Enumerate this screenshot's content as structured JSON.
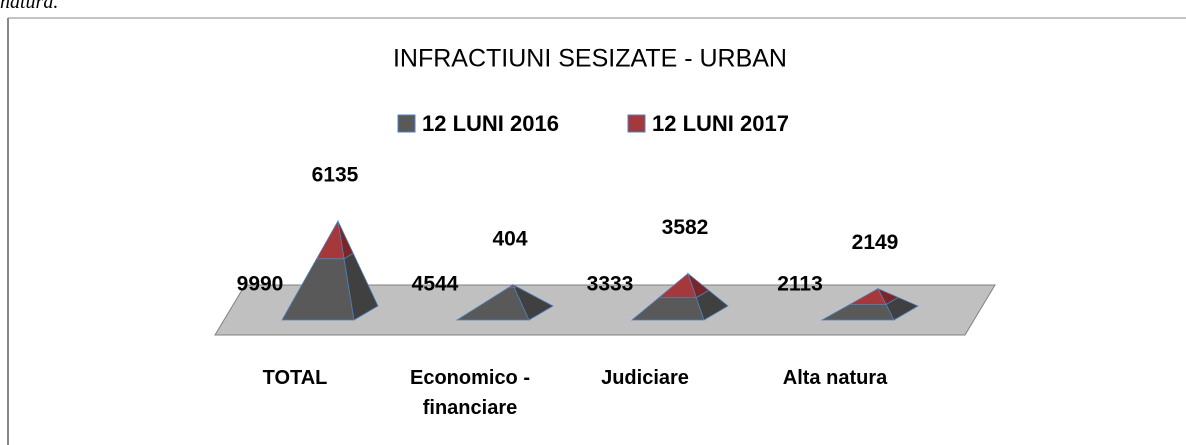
{
  "header": {
    "text": "natura."
  },
  "chart_data": {
    "type": "pyramid",
    "title": "INFRACTIUNI SESIZATE - URBAN",
    "categories": [
      "TOTAL",
      "Economico - financiare",
      "Judiciare",
      "Alta natura"
    ],
    "series": [
      {
        "name": "12 LUNI 2016",
        "color": "#595959",
        "values": [
          9990,
          4544,
          3333,
          2113
        ]
      },
      {
        "name": "12 LUNI 2017",
        "color": "#a5383a",
        "values": [
          6135,
          404,
          3582,
          2149
        ]
      }
    ],
    "stacked": true,
    "legend": "top"
  }
}
